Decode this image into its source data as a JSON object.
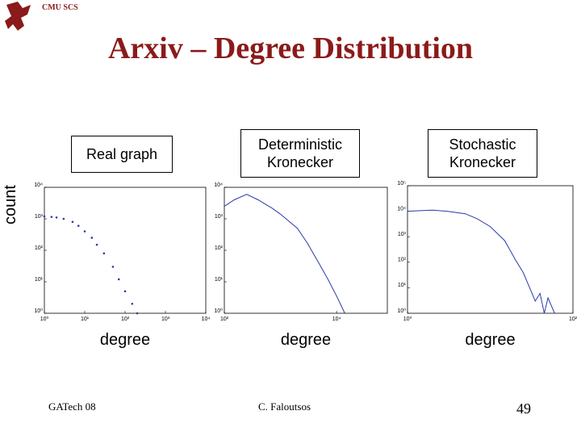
{
  "header": "CMU SCS",
  "title": "Arxiv – Degree Distribution",
  "footer": {
    "left": "GATech 08",
    "center": "C. Faloutsos",
    "page": "49"
  },
  "chart_data": [
    {
      "type": "scatter",
      "title": "Real graph",
      "xlabel": "degree",
      "ylabel": "count",
      "xlog": true,
      "ylog": true,
      "color": "#2a3aa8",
      "xlim": [
        1,
        10000
      ],
      "ylim": [
        1,
        10000
      ],
      "xticks": [
        {
          "value": 1,
          "label": "10⁰"
        },
        {
          "value": 10,
          "label": "10¹"
        },
        {
          "value": 100,
          "label": "10²"
        },
        {
          "value": 1000,
          "label": "10³"
        },
        {
          "value": 10000,
          "label": "10⁴"
        }
      ],
      "yticks": [
        {
          "value": 1,
          "label": "10⁰"
        },
        {
          "value": 10,
          "label": "10¹"
        },
        {
          "value": 100,
          "label": "10²"
        },
        {
          "value": 1000,
          "label": "10³"
        },
        {
          "value": 10000,
          "label": "10⁴"
        }
      ],
      "x": [
        1,
        1.5,
        2,
        3,
        5,
        7,
        10,
        15,
        20,
        30,
        50,
        70,
        100,
        150,
        200
      ],
      "values": [
        1200,
        1150,
        1100,
        1000,
        800,
        600,
        400,
        250,
        150,
        80,
        30,
        12,
        5,
        2,
        1
      ]
    },
    {
      "type": "line",
      "title": "Deterministic Kronecker",
      "xlabel": "degree",
      "xlog": true,
      "ylog": true,
      "color": "#2a3aa8",
      "xlim": [
        100,
        80000
      ],
      "ylim": [
        1,
        10000
      ],
      "xticks": [
        {
          "value": 100,
          "label": "10²"
        },
        {
          "value": 10000,
          "label": "10⁴"
        }
      ],
      "yticks": [
        {
          "value": 1,
          "label": "10⁰"
        },
        {
          "value": 10,
          "label": "10¹"
        },
        {
          "value": 100,
          "label": "10²"
        },
        {
          "value": 1000,
          "label": "10³"
        },
        {
          "value": 10000,
          "label": "10⁴"
        }
      ],
      "x": [
        100,
        150,
        250,
        400,
        700,
        1000,
        2000,
        3000,
        5000,
        7000,
        10000,
        14000
      ],
      "values": [
        2500,
        4000,
        6000,
        4000,
        2200,
        1400,
        500,
        170,
        35,
        12,
        3.5,
        1
      ]
    },
    {
      "type": "line",
      "title": "Stochastic Kronecker",
      "xlabel": "degree",
      "xlog": true,
      "ylog": true,
      "color": "#2a3aa8",
      "xlim": [
        1,
        100
      ],
      "ylim": [
        1,
        100000
      ],
      "xticks": [
        {
          "value": 1,
          "label": "10⁰"
        },
        {
          "value": 100,
          "label": "10²"
        }
      ],
      "yticks": [
        {
          "value": 1,
          "label": "10⁰"
        },
        {
          "value": 10,
          "label": "10¹"
        },
        {
          "value": 100,
          "label": "10²"
        },
        {
          "value": 1000,
          "label": "10³"
        },
        {
          "value": 10000,
          "label": "10⁴"
        },
        {
          "value": 100000,
          "label": "10⁵"
        }
      ],
      "x": [
        1,
        2,
        3,
        5,
        7,
        10,
        15,
        20,
        25,
        30,
        35,
        40,
        45,
        50,
        60
      ],
      "values": [
        10000,
        11000,
        10000,
        8000,
        5000,
        2500,
        700,
        130,
        40,
        10,
        3,
        6,
        1,
        4,
        1
      ]
    }
  ]
}
